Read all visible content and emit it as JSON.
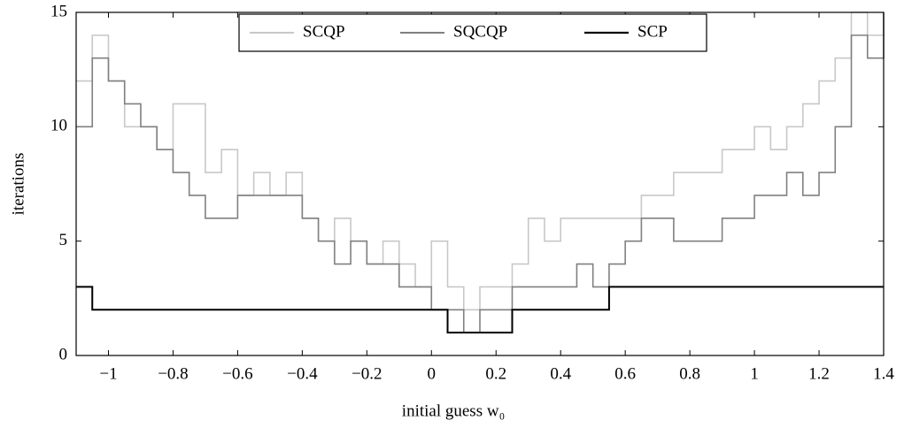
{
  "chart_data": {
    "type": "line",
    "drawstyle": "steps-post",
    "xlabel": "initial guess w₀",
    "ylabel": "iterations",
    "x": [
      -1.1,
      -1.05,
      -1.0,
      -0.95,
      -0.9,
      -0.85,
      -0.8,
      -0.75,
      -0.7,
      -0.65,
      -0.6,
      -0.55,
      -0.5,
      -0.45,
      -0.4,
      -0.35,
      -0.3,
      -0.25,
      -0.2,
      -0.15,
      -0.1,
      -0.05,
      0,
      0.05,
      0.1,
      0.15,
      0.2,
      0.25,
      0.3,
      0.35,
      0.4,
      0.45,
      0.5,
      0.55,
      0.6,
      0.65,
      0.7,
      0.75,
      0.8,
      0.85,
      0.9,
      0.95,
      1.0,
      1.05,
      1.1,
      1.15,
      1.2,
      1.25,
      1.3,
      1.35,
      1.4
    ],
    "series": [
      {
        "name": "SCQP",
        "color": "#c8c8c8",
        "values": [
          12,
          14,
          12,
          10,
          10,
          9,
          11,
          11,
          8,
          9,
          7,
          8,
          7,
          8,
          6,
          5,
          6,
          5,
          4,
          5,
          4,
          3,
          5,
          3,
          2,
          3,
          3,
          4,
          6,
          5,
          6,
          6,
          6,
          6,
          6,
          7,
          7,
          8,
          8,
          8,
          9,
          9,
          10,
          9,
          10,
          11,
          12,
          13,
          15,
          14,
          15
        ]
      },
      {
        "name": "SQCQP",
        "color": "#808080",
        "values": [
          10,
          13,
          12,
          11,
          10,
          9,
          8,
          7,
          6,
          6,
          7,
          7,
          7,
          7,
          6,
          5,
          4,
          5,
          4,
          4,
          3,
          3,
          2,
          2,
          1,
          2,
          2,
          3,
          3,
          3,
          3,
          4,
          3,
          4,
          5,
          6,
          6,
          5,
          5,
          5,
          6,
          6,
          7,
          7,
          8,
          7,
          8,
          10,
          14,
          13,
          15
        ]
      },
      {
        "name": "SCP",
        "color": "#000000",
        "values": [
          3,
          2,
          2,
          2,
          2,
          2,
          2,
          2,
          2,
          2,
          2,
          2,
          2,
          2,
          2,
          2,
          2,
          2,
          2,
          2,
          2,
          2,
          2,
          1,
          1,
          1,
          1,
          2,
          2,
          2,
          2,
          2,
          2,
          3,
          3,
          3,
          3,
          3,
          3,
          3,
          3,
          3,
          3,
          3,
          3,
          3,
          3,
          3,
          3,
          3,
          3
        ]
      }
    ],
    "xlim": [
      -1.1,
      1.4
    ],
    "ylim": [
      0,
      15
    ],
    "xticks": [
      {
        "value": -1,
        "label": "−1"
      },
      {
        "value": -0.8,
        "label": "−0.8"
      },
      {
        "value": -0.6,
        "label": "−0.6"
      },
      {
        "value": -0.4,
        "label": "−0.4"
      },
      {
        "value": -0.2,
        "label": "−0.2"
      },
      0,
      0.2,
      0.4,
      0.6,
      0.8,
      1,
      1.2,
      1.4
    ],
    "yticks": [
      0,
      5,
      10,
      15
    ],
    "legend": "top"
  }
}
